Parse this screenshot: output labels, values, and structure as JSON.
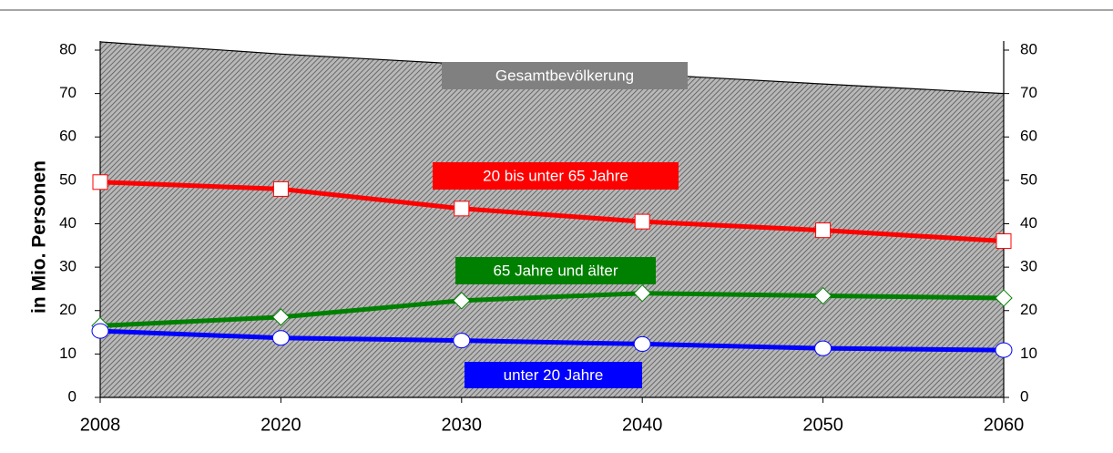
{
  "chart_data": {
    "type": "line",
    "y_label": "in Mio. Personen",
    "categories": [
      "2008",
      "2020",
      "2030",
      "2040",
      "2050",
      "2060"
    ],
    "series": [
      {
        "name": "Gesamtbevölkerung",
        "color": "#808080",
        "kind": "area",
        "values": [
          81.9,
          79.1,
          76.8,
          74.5,
          72.2,
          70.0
        ]
      },
      {
        "name": "20 bis unter 65 Jahre",
        "color": "#ff0000",
        "marker": "square",
        "values": [
          49.6,
          48.0,
          43.5,
          40.5,
          38.5,
          36.0
        ]
      },
      {
        "name": "65 Jahre und älter",
        "color": "#008000",
        "marker": "diamond",
        "values": [
          16.5,
          18.5,
          22.3,
          24.0,
          23.4,
          22.9
        ]
      },
      {
        "name": "unter 20 Jahre",
        "color": "#0000ff",
        "marker": "circle",
        "values": [
          15.3,
          13.7,
          13.1,
          12.3,
          11.3,
          10.9
        ]
      }
    ],
    "ylim": [
      0,
      80
    ],
    "yticks": [
      0,
      10,
      20,
      30,
      40,
      50,
      60,
      70,
      80
    ],
    "y2lim": [
      0,
      80
    ],
    "y2ticks": [
      0,
      10,
      20,
      30,
      40,
      50,
      60,
      70,
      80
    ]
  }
}
